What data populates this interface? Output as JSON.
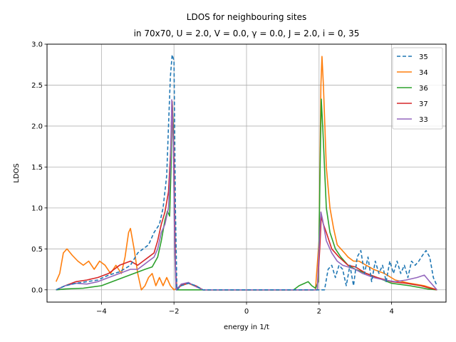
{
  "chart_data": {
    "type": "line",
    "title_line1": "LDOS for neighbouring sites",
    "title_line2": "in 70x70,  U = 2.0, V = 0.0, γ = 0.0, J = 2.0, i = 0, 35",
    "xlabel": "energy in 1/t",
    "ylabel": "LDOS",
    "xlim": [
      -5.5,
      5.5
    ],
    "ylim": [
      -0.15,
      3.0
    ],
    "xticks": [
      -4,
      -2,
      0,
      2,
      4
    ],
    "yticks": [
      0.0,
      0.5,
      1.0,
      1.5,
      2.0,
      2.5,
      3.0
    ],
    "grid": true,
    "legend_position": "upper-right",
    "series": [
      {
        "name": "35",
        "color": "#1f77b4",
        "dash": true,
        "points": [
          [
            -5.25,
            0.0
          ],
          [
            -5.0,
            0.05
          ],
          [
            -4.7,
            0.08
          ],
          [
            -4.4,
            0.1
          ],
          [
            -4.1,
            0.12
          ],
          [
            -3.8,
            0.18
          ],
          [
            -3.5,
            0.22
          ],
          [
            -3.2,
            0.3
          ],
          [
            -3.0,
            0.45
          ],
          [
            -2.85,
            0.5
          ],
          [
            -2.7,
            0.55
          ],
          [
            -2.55,
            0.7
          ],
          [
            -2.4,
            0.8
          ],
          [
            -2.3,
            1.0
          ],
          [
            -2.2,
            1.4
          ],
          [
            -2.15,
            2.0
          ],
          [
            -2.1,
            2.6
          ],
          [
            -2.05,
            2.87
          ],
          [
            -2.0,
            2.8
          ],
          [
            -1.96,
            1.0
          ],
          [
            -1.92,
            0.0
          ],
          [
            -1.8,
            0.05
          ],
          [
            -1.6,
            0.08
          ],
          [
            -1.4,
            0.05
          ],
          [
            -1.2,
            0.0
          ],
          [
            2.0,
            0.0
          ],
          [
            2.15,
            0.0
          ],
          [
            2.25,
            0.25
          ],
          [
            2.35,
            0.3
          ],
          [
            2.45,
            0.15
          ],
          [
            2.55,
            0.3
          ],
          [
            2.65,
            0.25
          ],
          [
            2.75,
            0.05
          ],
          [
            2.85,
            0.3
          ],
          [
            2.95,
            0.05
          ],
          [
            3.05,
            0.4
          ],
          [
            3.15,
            0.48
          ],
          [
            3.25,
            0.2
          ],
          [
            3.35,
            0.4
          ],
          [
            3.45,
            0.1
          ],
          [
            3.55,
            0.35
          ],
          [
            3.65,
            0.2
          ],
          [
            3.75,
            0.3
          ],
          [
            3.85,
            0.1
          ],
          [
            3.95,
            0.35
          ],
          [
            4.05,
            0.2
          ],
          [
            4.15,
            0.35
          ],
          [
            4.25,
            0.2
          ],
          [
            4.35,
            0.3
          ],
          [
            4.45,
            0.15
          ],
          [
            4.55,
            0.35
          ],
          [
            4.65,
            0.3
          ],
          [
            4.75,
            0.35
          ],
          [
            4.85,
            0.42
          ],
          [
            4.95,
            0.48
          ],
          [
            5.05,
            0.4
          ],
          [
            5.15,
            0.15
          ],
          [
            5.25,
            0.05
          ]
        ]
      },
      {
        "name": "34",
        "color": "#ff7f0e",
        "dash": false,
        "points": [
          [
            -5.25,
            0.1
          ],
          [
            -5.15,
            0.2
          ],
          [
            -5.05,
            0.45
          ],
          [
            -4.95,
            0.5
          ],
          [
            -4.8,
            0.42
          ],
          [
            -4.65,
            0.35
          ],
          [
            -4.5,
            0.3
          ],
          [
            -4.35,
            0.35
          ],
          [
            -4.2,
            0.25
          ],
          [
            -4.05,
            0.35
          ],
          [
            -3.9,
            0.3
          ],
          [
            -3.75,
            0.2
          ],
          [
            -3.6,
            0.3
          ],
          [
            -3.45,
            0.2
          ],
          [
            -3.35,
            0.4
          ],
          [
            -3.25,
            0.7
          ],
          [
            -3.2,
            0.75
          ],
          [
            -3.1,
            0.5
          ],
          [
            -3.0,
            0.2
          ],
          [
            -2.9,
            0.0
          ],
          [
            -2.8,
            0.05
          ],
          [
            -2.7,
            0.15
          ],
          [
            -2.6,
            0.2
          ],
          [
            -2.5,
            0.05
          ],
          [
            -2.4,
            0.15
          ],
          [
            -2.3,
            0.05
          ],
          [
            -2.2,
            0.15
          ],
          [
            -2.1,
            0.05
          ],
          [
            -2.0,
            0.0
          ],
          [
            -1.8,
            0.05
          ],
          [
            -1.6,
            0.08
          ],
          [
            -1.4,
            0.04
          ],
          [
            -1.2,
            0.0
          ],
          [
            1.9,
            0.0
          ],
          [
            2.0,
            0.6
          ],
          [
            2.05,
            2.5
          ],
          [
            2.08,
            2.85
          ],
          [
            2.12,
            2.5
          ],
          [
            2.2,
            1.5
          ],
          [
            2.3,
            1.0
          ],
          [
            2.4,
            0.75
          ],
          [
            2.5,
            0.55
          ],
          [
            2.6,
            0.5
          ],
          [
            2.7,
            0.45
          ],
          [
            2.8,
            0.4
          ],
          [
            2.95,
            0.35
          ],
          [
            3.1,
            0.35
          ],
          [
            3.3,
            0.3
          ],
          [
            3.5,
            0.25
          ],
          [
            3.8,
            0.2
          ],
          [
            4.1,
            0.12
          ],
          [
            4.5,
            0.08
          ],
          [
            4.9,
            0.05
          ],
          [
            5.25,
            0.0
          ]
        ]
      },
      {
        "name": "36",
        "color": "#2ca02c",
        "dash": false,
        "points": [
          [
            -5.25,
            0.0
          ],
          [
            -5.0,
            0.01
          ],
          [
            -4.5,
            0.02
          ],
          [
            -4.0,
            0.05
          ],
          [
            -3.7,
            0.1
          ],
          [
            -3.4,
            0.15
          ],
          [
            -3.1,
            0.2
          ],
          [
            -2.8,
            0.25
          ],
          [
            -2.6,
            0.28
          ],
          [
            -2.45,
            0.4
          ],
          [
            -2.35,
            0.6
          ],
          [
            -2.25,
            0.85
          ],
          [
            -2.18,
            0.96
          ],
          [
            -2.12,
            0.9
          ],
          [
            -2.08,
            1.5
          ],
          [
            -2.05,
            2.3
          ],
          [
            -2.02,
            2.0
          ],
          [
            -1.98,
            0.5
          ],
          [
            -1.94,
            0.0
          ],
          [
            -1.0,
            0.0
          ],
          [
            1.3,
            0.0
          ],
          [
            1.45,
            0.05
          ],
          [
            1.6,
            0.08
          ],
          [
            1.7,
            0.1
          ],
          [
            1.8,
            0.05
          ],
          [
            1.9,
            0.02
          ],
          [
            1.98,
            0.1
          ],
          [
            2.03,
            1.5
          ],
          [
            2.06,
            2.33
          ],
          [
            2.1,
            2.0
          ],
          [
            2.2,
            1.0
          ],
          [
            2.3,
            0.7
          ],
          [
            2.45,
            0.5
          ],
          [
            2.6,
            0.4
          ],
          [
            2.8,
            0.3
          ],
          [
            3.0,
            0.25
          ],
          [
            3.3,
            0.2
          ],
          [
            3.6,
            0.15
          ],
          [
            4.0,
            0.08
          ],
          [
            4.5,
            0.05
          ],
          [
            5.0,
            0.01
          ],
          [
            5.25,
            0.0
          ]
        ]
      },
      {
        "name": "37",
        "color": "#d62728",
        "dash": false,
        "points": [
          [
            -5.25,
            0.0
          ],
          [
            -5.0,
            0.05
          ],
          [
            -4.7,
            0.1
          ],
          [
            -4.4,
            0.12
          ],
          [
            -4.1,
            0.15
          ],
          [
            -3.8,
            0.2
          ],
          [
            -3.5,
            0.3
          ],
          [
            -3.2,
            0.35
          ],
          [
            -3.0,
            0.3
          ],
          [
            -2.85,
            0.35
          ],
          [
            -2.7,
            0.4
          ],
          [
            -2.55,
            0.45
          ],
          [
            -2.45,
            0.6
          ],
          [
            -2.35,
            0.8
          ],
          [
            -2.25,
            0.95
          ],
          [
            -2.15,
            1.2
          ],
          [
            -2.08,
            1.8
          ],
          [
            -2.05,
            2.3
          ],
          [
            -2.0,
            1.6
          ],
          [
            -1.96,
            0.3
          ],
          [
            -1.92,
            0.0
          ],
          [
            -1.8,
            0.06
          ],
          [
            -1.6,
            0.08
          ],
          [
            -1.4,
            0.05
          ],
          [
            -1.2,
            0.0
          ],
          [
            1.95,
            0.0
          ],
          [
            2.02,
            0.5
          ],
          [
            2.06,
            0.9
          ],
          [
            2.12,
            0.8
          ],
          [
            2.2,
            0.7
          ],
          [
            2.35,
            0.5
          ],
          [
            2.55,
            0.4
          ],
          [
            2.8,
            0.3
          ],
          [
            3.0,
            0.28
          ],
          [
            3.3,
            0.2
          ],
          [
            3.6,
            0.15
          ],
          [
            4.0,
            0.1
          ],
          [
            4.4,
            0.08
          ],
          [
            4.8,
            0.05
          ],
          [
            5.25,
            0.0
          ]
        ]
      },
      {
        "name": "33",
        "color": "#9467bd",
        "dash": false,
        "points": [
          [
            -5.25,
            0.0
          ],
          [
            -5.0,
            0.05
          ],
          [
            -4.7,
            0.08
          ],
          [
            -4.4,
            0.07
          ],
          [
            -4.1,
            0.1
          ],
          [
            -3.8,
            0.15
          ],
          [
            -3.5,
            0.2
          ],
          [
            -3.2,
            0.25
          ],
          [
            -3.0,
            0.25
          ],
          [
            -2.85,
            0.3
          ],
          [
            -2.7,
            0.35
          ],
          [
            -2.55,
            0.4
          ],
          [
            -2.45,
            0.5
          ],
          [
            -2.35,
            0.7
          ],
          [
            -2.25,
            0.8
          ],
          [
            -2.15,
            1.0
          ],
          [
            -2.1,
            1.5
          ],
          [
            -2.06,
            2.32
          ],
          [
            -2.02,
            1.8
          ],
          [
            -1.98,
            0.5
          ],
          [
            -1.94,
            0.0
          ],
          [
            -1.8,
            0.07
          ],
          [
            -1.6,
            0.09
          ],
          [
            -1.4,
            0.04
          ],
          [
            -1.2,
            0.0
          ],
          [
            1.95,
            0.0
          ],
          [
            2.02,
            0.7
          ],
          [
            2.05,
            0.95
          ],
          [
            2.1,
            0.85
          ],
          [
            2.2,
            0.6
          ],
          [
            2.35,
            0.45
          ],
          [
            2.5,
            0.35
          ],
          [
            2.65,
            0.3
          ],
          [
            2.8,
            0.28
          ],
          [
            3.0,
            0.25
          ],
          [
            3.2,
            0.2
          ],
          [
            3.5,
            0.15
          ],
          [
            3.8,
            0.12
          ],
          [
            4.1,
            0.1
          ],
          [
            4.4,
            0.12
          ],
          [
            4.7,
            0.15
          ],
          [
            4.9,
            0.18
          ],
          [
            5.05,
            0.1
          ],
          [
            5.25,
            0.0
          ]
        ]
      }
    ]
  }
}
